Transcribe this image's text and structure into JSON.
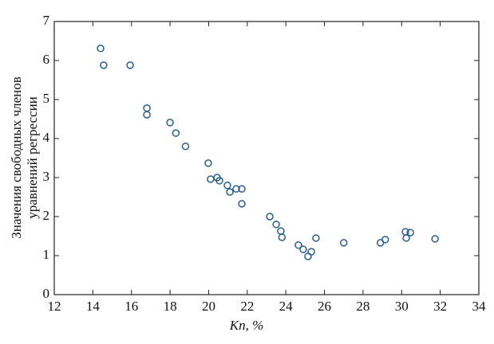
{
  "chart_data": {
    "type": "scatter",
    "x_label": "Kп, %",
    "y_label": [
      "Значения свободных членов",
      "уравнений регрессии"
    ],
    "x": [
      14.4,
      14.56,
      15.93,
      16.8,
      16.8,
      18.0,
      18.3,
      18.8,
      19.98,
      20.1,
      20.44,
      20.56,
      20.97,
      21.1,
      21.43,
      21.72,
      21.72,
      23.17,
      23.5,
      23.74,
      23.8,
      24.65,
      24.9,
      25.15,
      25.32,
      25.56,
      27.0,
      28.9,
      29.15,
      30.2,
      30.24,
      30.45,
      31.73
    ],
    "values": [
      6.31,
      5.88,
      5.88,
      4.78,
      4.61,
      4.41,
      4.14,
      3.8,
      3.37,
      2.96,
      3.0,
      2.92,
      2.8,
      2.63,
      2.71,
      2.71,
      2.33,
      2.0,
      1.8,
      1.63,
      1.47,
      1.27,
      1.16,
      0.98,
      1.1,
      1.45,
      1.33,
      1.33,
      1.41,
      1.61,
      1.45,
      1.59,
      1.43
    ],
    "color": "#2b5d8c",
    "xlim": [
      12,
      34
    ],
    "xticks": [
      12,
      14,
      16,
      18,
      20,
      22,
      24,
      26,
      28,
      30,
      32,
      34
    ],
    "ylim": [
      0,
      7
    ],
    "yticks": [
      0,
      1,
      2,
      3,
      4,
      5,
      6,
      7
    ]
  }
}
